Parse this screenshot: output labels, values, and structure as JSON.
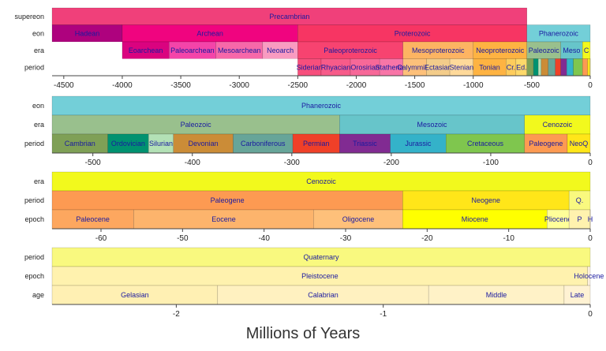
{
  "chart_data": {
    "type": "timeline",
    "xlabel": "Millions of Years",
    "panels": [
      {
        "name": "panel-full",
        "xlim": [
          -4600,
          0
        ],
        "ticks": [
          -4500,
          -4000,
          -3500,
          -3000,
          -2500,
          -2000,
          -1500,
          -1000,
          -500,
          0
        ],
        "tick_labels": [
          "-4500",
          "-4000",
          "-3500",
          "-3000",
          "-2500",
          "-2000",
          "-1500",
          "-1000",
          "-500",
          "0"
        ],
        "rows": [
          {
            "label": "supereon",
            "segments": [
              {
                "name": "Precambrian",
                "start": -4600,
                "end": -541,
                "color": "#f0407a"
              }
            ]
          },
          {
            "label": "eon",
            "segments": [
              {
                "name": "Hadean",
                "start": -4600,
                "end": -4000,
                "color": "#ae027e"
              },
              {
                "name": "Archean",
                "start": -4000,
                "end": -2500,
                "color": "#f0047f"
              },
              {
                "name": "Proterozoic",
                "start": -2500,
                "end": -541,
                "color": "#f73563"
              },
              {
                "name": "Phanerozoic",
                "start": -541,
                "end": 0,
                "color": "#73cfd8"
              }
            ]
          },
          {
            "label": "era",
            "segments": [
              {
                "name": "",
                "start": -4600,
                "end": -4000,
                "color": "#ffffff"
              },
              {
                "name": "Eoarchean",
                "start": -4000,
                "end": -3600,
                "color": "#da037f"
              },
              {
                "name": "Paleoarchean",
                "start": -3600,
                "end": -3200,
                "color": "#f444a9"
              },
              {
                "name": "Mesoarchean",
                "start": -3200,
                "end": -2800,
                "color": "#f768a9"
              },
              {
                "name": "Neoarch",
                "start": -2800,
                "end": -2500,
                "color": "#f99bc1"
              },
              {
                "name": "Paleoproterozoic",
                "start": -2500,
                "end": -1600,
                "color": "#f74370"
              },
              {
                "name": "Mesoproterozoic",
                "start": -1600,
                "end": -1000,
                "color": "#fdb462"
              },
              {
                "name": "Neoproterozoic",
                "start": -1000,
                "end": -541,
                "color": "#feb342"
              },
              {
                "name": "Paleozoic",
                "start": -541,
                "end": -252,
                "color": "#99c08d"
              },
              {
                "name": "Meso",
                "start": -252,
                "end": -66,
                "color": "#67c5ca"
              },
              {
                "name": "C",
                "start": -66,
                "end": 0,
                "color": "#f2f91d"
              }
            ]
          },
          {
            "label": "period",
            "segments": [
              {
                "name": "",
                "start": -4600,
                "end": -2500,
                "color": "#ffffff"
              },
              {
                "name": "Siderian",
                "start": -2500,
                "end": -2300,
                "color": "#f74f7c"
              },
              {
                "name": "Rhyacian",
                "start": -2300,
                "end": -2050,
                "color": "#f75b89"
              },
              {
                "name": "Orosirian",
                "start": -2050,
                "end": -1800,
                "color": "#f76898"
              },
              {
                "name": "Statherian",
                "start": -1800,
                "end": -1600,
                "color": "#f875a7"
              },
              {
                "name": "Calymmian",
                "start": -1600,
                "end": -1400,
                "color": "#fdc07a"
              },
              {
                "name": "Ectasian",
                "start": -1400,
                "end": -1200,
                "color": "#f3cc8a"
              },
              {
                "name": "Stenian",
                "start": -1200,
                "end": -1000,
                "color": "#fed99a"
              },
              {
                "name": "Tonian",
                "start": -1000,
                "end": -720,
                "color": "#feb342"
              },
              {
                "name": "Cr.",
                "start": -720,
                "end": -635,
                "color": "#fecc5c"
              },
              {
                "name": "Ed.",
                "start": -635,
                "end": -541,
                "color": "#fed96a"
              },
              {
                "name": "",
                "start": -541,
                "end": -485,
                "color": "#7fa056"
              },
              {
                "name": "",
                "start": -485,
                "end": -444,
                "color": "#009270"
              },
              {
                "name": "",
                "start": -444,
                "end": -419,
                "color": "#b3e1b6"
              },
              {
                "name": "",
                "start": -419,
                "end": -359,
                "color": "#cb8c37"
              },
              {
                "name": "",
                "start": -359,
                "end": -299,
                "color": "#67a599"
              },
              {
                "name": "",
                "start": -299,
                "end": -252,
                "color": "#f04028"
              },
              {
                "name": "",
                "start": -252,
                "end": -201,
                "color": "#812b92"
              },
              {
                "name": "",
                "start": -201,
                "end": -145,
                "color": "#34b2c9"
              },
              {
                "name": "",
                "start": -145,
                "end": -66,
                "color": "#7fc64e"
              },
              {
                "name": "",
                "start": -66,
                "end": -23,
                "color": "#fd9a52"
              },
              {
                "name": "",
                "start": -23,
                "end": -2.6,
                "color": "#ffe619"
              },
              {
                "name": "",
                "start": -2.6,
                "end": 0,
                "color": "#f9f97f"
              }
            ]
          }
        ]
      },
      {
        "name": "panel-phanerozoic",
        "xlim": [
          -541,
          0
        ],
        "ticks": [
          -500,
          -400,
          -300,
          -200,
          -100,
          0
        ],
        "tick_labels": [
          "-500",
          "-400",
          "-300",
          "-200",
          "-100",
          "0"
        ],
        "rows": [
          {
            "label": "eon",
            "segments": [
              {
                "name": "Phanerozoic",
                "start": -541,
                "end": 0,
                "color": "#73cfd8"
              }
            ]
          },
          {
            "label": "era",
            "segments": [
              {
                "name": "Paleozoic",
                "start": -541,
                "end": -252,
                "color": "#99c08d"
              },
              {
                "name": "Mesozoic",
                "start": -252,
                "end": -66,
                "color": "#67c5ca"
              },
              {
                "name": "Cenozoic",
                "start": -66,
                "end": 0,
                "color": "#f2f91d"
              }
            ]
          },
          {
            "label": "period",
            "segments": [
              {
                "name": "Cambrian",
                "start": -541,
                "end": -485,
                "color": "#7fa056"
              },
              {
                "name": "Ordovician",
                "start": -485,
                "end": -444,
                "color": "#009270"
              },
              {
                "name": "Silurian",
                "start": -444,
                "end": -419,
                "color": "#b3e1b6"
              },
              {
                "name": "Devonian",
                "start": -419,
                "end": -359,
                "color": "#cb8c37"
              },
              {
                "name": "Carboniferous",
                "start": -359,
                "end": -299,
                "color": "#67a599"
              },
              {
                "name": "Permian",
                "start": -299,
                "end": -252,
                "color": "#f04028"
              },
              {
                "name": "Triassic",
                "start": -252,
                "end": -201,
                "color": "#812b92"
              },
              {
                "name": "Jurassic",
                "start": -201,
                "end": -145,
                "color": "#34b2c9"
              },
              {
                "name": "Cretaceous",
                "start": -145,
                "end": -66,
                "color": "#7fc64e"
              },
              {
                "name": "Paleogene",
                "start": -66,
                "end": -23,
                "color": "#fd9a52"
              },
              {
                "name": "NeoQ",
                "start": -23,
                "end": 0,
                "color": "#ffe619"
              }
            ]
          }
        ]
      },
      {
        "name": "panel-cenozoic",
        "xlim": [
          -66,
          0
        ],
        "ticks": [
          -60,
          -50,
          -40,
          -30,
          -20,
          -10,
          0
        ],
        "tick_labels": [
          "-60",
          "-50",
          "-40",
          "-30",
          "-20",
          "-10",
          "0"
        ],
        "rows": [
          {
            "label": "era",
            "segments": [
              {
                "name": "Cenozoic",
                "start": -66,
                "end": 0,
                "color": "#f2f91d"
              }
            ]
          },
          {
            "label": "period",
            "segments": [
              {
                "name": "Paleogene",
                "start": -66,
                "end": -23,
                "color": "#fd9a52"
              },
              {
                "name": "Neogene",
                "start": -23,
                "end": -2.6,
                "color": "#ffe619"
              },
              {
                "name": "Q.",
                "start": -2.6,
                "end": 0,
                "color": "#f9f97f"
              }
            ]
          },
          {
            "label": "epoch",
            "segments": [
              {
                "name": "Paleocene",
                "start": -66,
                "end": -56,
                "color": "#fda75f"
              },
              {
                "name": "Eocene",
                "start": -56,
                "end": -33.9,
                "color": "#fdb46c"
              },
              {
                "name": "Oligocene",
                "start": -33.9,
                "end": -23,
                "color": "#fec07a"
              },
              {
                "name": "Miocene",
                "start": -23,
                "end": -5.3,
                "color": "#ffff00"
              },
              {
                "name": "Pliocene",
                "start": -5.3,
                "end": -2.6,
                "color": "#ffff99"
              },
              {
                "name": "P",
                "start": -2.6,
                "end": -0.012,
                "color": "#fff2ae"
              },
              {
                "name": "H",
                "start": -0.012,
                "end": 0,
                "color": "#fef2e0"
              }
            ]
          }
        ]
      },
      {
        "name": "panel-quaternary",
        "xlim": [
          -2.6,
          0
        ],
        "ticks": [
          -2,
          -1,
          0
        ],
        "tick_labels": [
          "-2",
          "-1",
          "0"
        ],
        "rows": [
          {
            "label": "period",
            "segments": [
              {
                "name": "Quaternary",
                "start": -2.6,
                "end": 0,
                "color": "#f9f97f"
              }
            ]
          },
          {
            "label": "epoch",
            "segments": [
              {
                "name": "Pleistocene",
                "start": -2.6,
                "end": -0.012,
                "color": "#fff2ae"
              },
              {
                "name": "Holocene",
                "start": -0.012,
                "end": 0,
                "color": "#fef2e0"
              }
            ]
          },
          {
            "label": "age",
            "segments": [
              {
                "name": "Gelasian",
                "start": -2.6,
                "end": -1.8,
                "color": "#fff0b3"
              },
              {
                "name": "Calabrian",
                "start": -1.8,
                "end": -0.781,
                "color": "#fff1c0"
              },
              {
                "name": "Middle",
                "start": -0.781,
                "end": -0.126,
                "color": "#fff2c7"
              },
              {
                "name": "Late",
                "start": -0.126,
                "end": 0,
                "color": "#fff2d3"
              }
            ]
          }
        ]
      }
    ]
  }
}
